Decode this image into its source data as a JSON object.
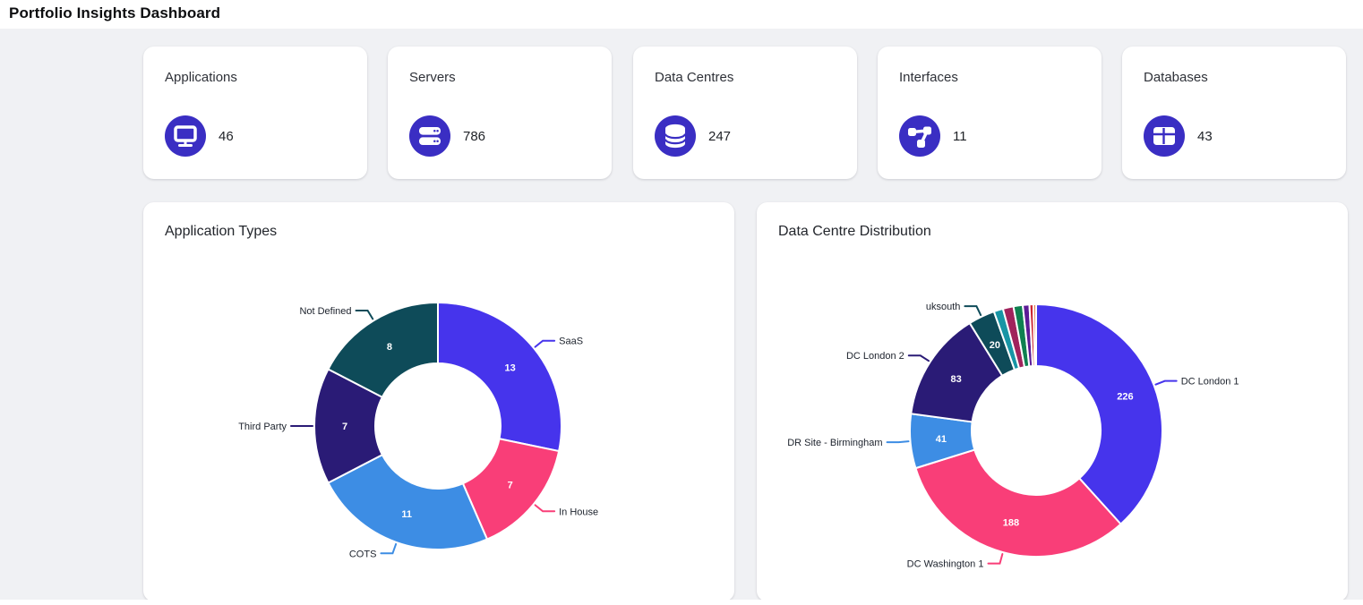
{
  "page": {
    "title": "Portfolio Insights Dashboard"
  },
  "theme": {
    "accent": "#3A2EC3",
    "page_bg": "#F0F1F4",
    "card_bg": "#FFFFFF"
  },
  "stats": [
    {
      "label": "Applications",
      "value": "46",
      "icon": "monitor-icon"
    },
    {
      "label": "Servers",
      "value": "786",
      "icon": "server-stack-icon"
    },
    {
      "label": "Data Centres",
      "value": "247",
      "icon": "database-icon"
    },
    {
      "label": "Interfaces",
      "value": "11",
      "icon": "network-icon"
    },
    {
      "label": "Databases",
      "value": "43",
      "icon": "table-grid-icon"
    }
  ],
  "chart_data": [
    {
      "type": "pie",
      "variant": "donut",
      "title": "Application Types",
      "legend_position": "none",
      "labels_outside": true,
      "value_labels_inside": true,
      "slices": [
        {
          "label": "SaaS",
          "value": 13,
          "color": "#4634EC"
        },
        {
          "label": "In House",
          "value": 7,
          "color": "#F93E78"
        },
        {
          "label": "COTS",
          "value": 11,
          "color": "#3D8DE4"
        },
        {
          "label": "Third Party",
          "value": 7,
          "color": "#2A1B76"
        },
        {
          "label": "Not Defined",
          "value": 8,
          "color": "#0E4B59"
        }
      ]
    },
    {
      "type": "pie",
      "variant": "donut",
      "title": "Data Centre Distribution",
      "legend_position": "none",
      "labels_outside": true,
      "value_labels_inside": true,
      "slices": [
        {
          "label": "DC London 1",
          "value": 226,
          "color": "#4634EC"
        },
        {
          "label": "DC Washington 1",
          "value": 188,
          "color": "#F93E78"
        },
        {
          "label": "DR Site - Birmingham",
          "value": 41,
          "color": "#3D8DE4"
        },
        {
          "label": "DC London 2",
          "value": 83,
          "color": "#2A1B76"
        },
        {
          "label": "uksouth",
          "value": 20,
          "color": "#0E4B59"
        },
        {
          "label": "",
          "value": 7,
          "color": "#1795A5"
        },
        {
          "label": "",
          "value": 8,
          "color": "#A0235C"
        },
        {
          "label": "",
          "value": 7,
          "color": "#0F8050"
        },
        {
          "label": "",
          "value": 5,
          "color": "#5C1B96"
        },
        {
          "label": "",
          "value": 3,
          "color": "#CC2430"
        },
        {
          "label": "",
          "value": 2,
          "color": "#E06A35"
        }
      ]
    }
  ]
}
